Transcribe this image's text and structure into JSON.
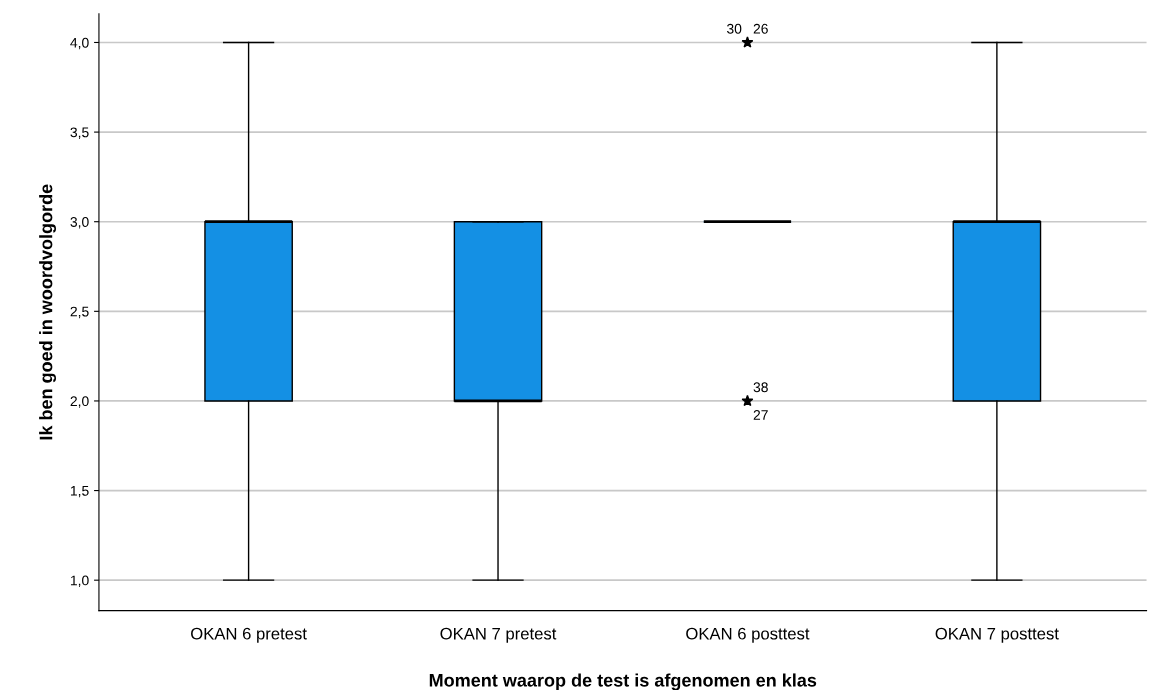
{
  "chart_data": {
    "type": "box",
    "xlabel": "Moment waarop de test is afgenomen en klas",
    "ylabel": "Ik ben goed in woordvolgorde",
    "categories": [
      "OKAN 6 pretest",
      "OKAN 7 pretest",
      "OKAN 6 posttest",
      "OKAN 7 posttest"
    ],
    "boxes": [
      {
        "low": 1.0,
        "q1": 2.0,
        "median": 3.0,
        "q3": 3.0,
        "high": 4.0
      },
      {
        "low": 1.0,
        "q1": 2.0,
        "median": 2.0,
        "q3": 3.0,
        "high": 3.0
      },
      {
        "low": 3.0,
        "q1": 3.0,
        "median": 3.0,
        "q3": 3.0,
        "high": 3.0,
        "outliers": [
          4.0,
          2.0
        ]
      },
      {
        "low": 1.0,
        "q1": 2.0,
        "median": 3.0,
        "q3": 3.0,
        "high": 4.0
      }
    ],
    "color": "#1490e4",
    "marker": "star",
    "ylim": [
      0.83,
      4.16
    ],
    "yticks": [
      {
        "value": 1.0,
        "label": "1,0"
      },
      {
        "value": 1.5,
        "label": "1,5"
      },
      {
        "value": 2.0,
        "label": "2,0"
      },
      {
        "value": 2.5,
        "label": "2,5"
      },
      {
        "value": 3.0,
        "label": "3,0"
      },
      {
        "value": 3.5,
        "label": "3,5"
      },
      {
        "value": 4.0,
        "label": "4,0"
      }
    ],
    "grid": "y",
    "annotations": [
      "30",
      "26",
      "38",
      "27"
    ]
  }
}
